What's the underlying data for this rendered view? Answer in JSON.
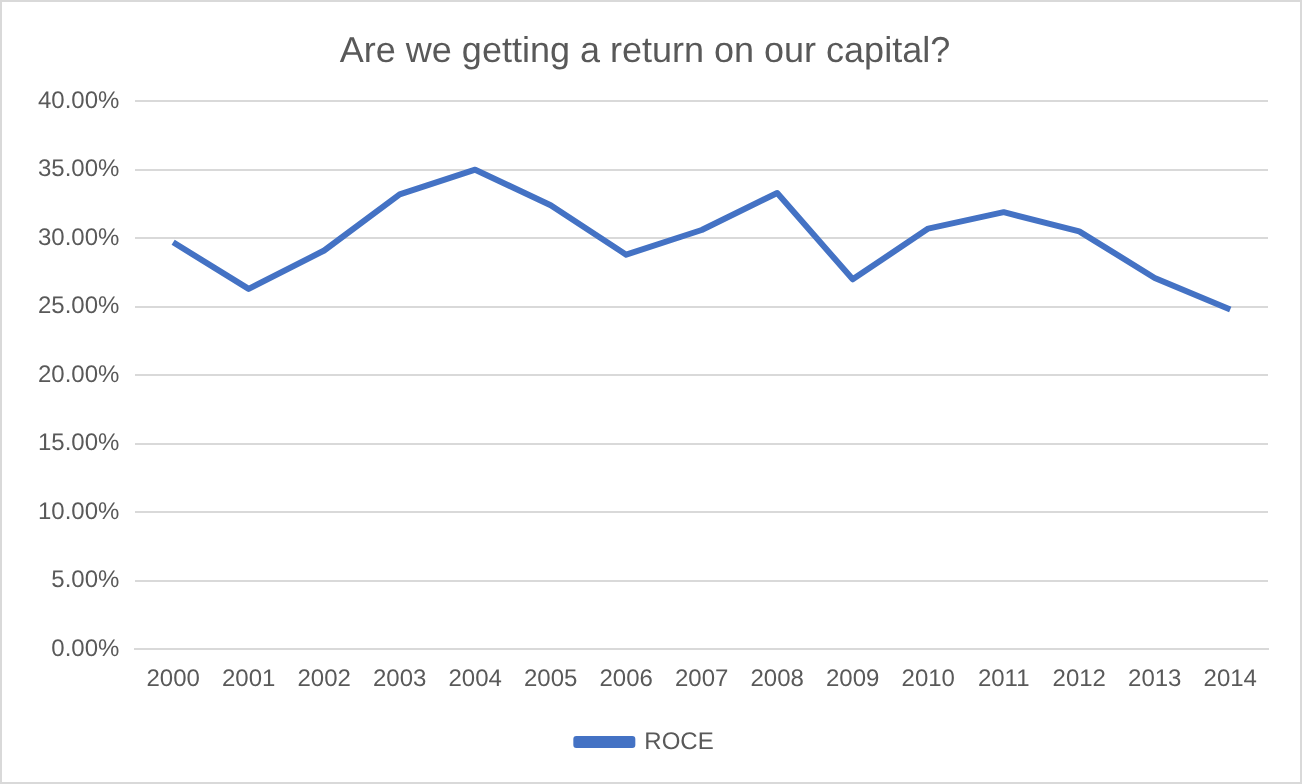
{
  "chart_data": {
    "type": "line",
    "title": "Are we getting a return on our capital?",
    "categories": [
      "2000",
      "2001",
      "2002",
      "2003",
      "2004",
      "2005",
      "2006",
      "2007",
      "2008",
      "2009",
      "2010",
      "2011",
      "2012",
      "2013",
      "2014"
    ],
    "series": [
      {
        "name": "ROCE",
        "color": "#4472c4",
        "values": [
          29.7,
          26.3,
          29.1,
          33.2,
          35.0,
          32.4,
          28.8,
          30.6,
          33.3,
          27.0,
          30.7,
          31.9,
          30.5,
          27.1,
          24.8
        ]
      }
    ],
    "ylim": [
      0,
      40
    ],
    "yticks": [
      {
        "value": 0,
        "label": "0.00%"
      },
      {
        "value": 5,
        "label": "5.00%"
      },
      {
        "value": 10,
        "label": "10.00%"
      },
      {
        "value": 15,
        "label": "15.00%"
      },
      {
        "value": 20,
        "label": "20.00%"
      },
      {
        "value": 25,
        "label": "25.00%"
      },
      {
        "value": 30,
        "label": "30.00%"
      },
      {
        "value": 35,
        "label": "35.00%"
      },
      {
        "value": 40,
        "label": "40.00%"
      }
    ],
    "grid": "y",
    "legend": "bottom",
    "marker": "none",
    "line_style": "solid"
  }
}
